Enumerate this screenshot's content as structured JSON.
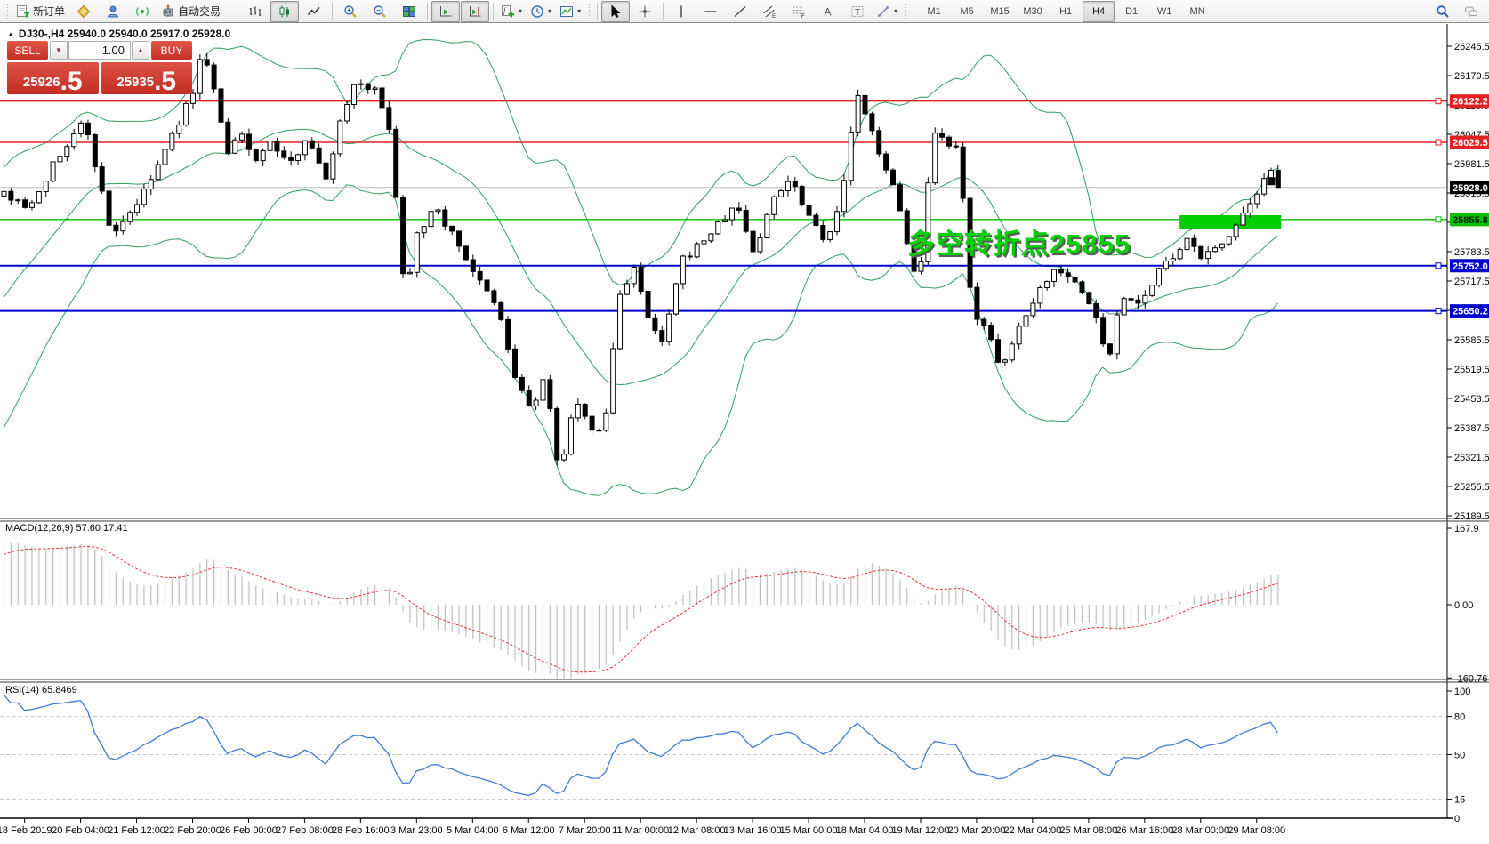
{
  "icons": {
    "caret": "▾",
    "spinner_up": "▲",
    "spinner_down": "▼",
    "collapse": "▲"
  },
  "toolbar": {
    "new_order_label": "新订单",
    "autotrading_label": "自动交易",
    "timeframes": [
      "M1",
      "M5",
      "M15",
      "M30",
      "H1",
      "H4",
      "D1",
      "W1",
      "MN"
    ],
    "active_timeframe": "H4"
  },
  "trade_panel": {
    "sell_label": "SELL",
    "buy_label": "BUY",
    "volume": "1.00",
    "sell_price_main": "25926",
    "sell_price_fraction": ".5",
    "buy_price_main": "25935",
    "buy_price_fraction": ".5"
  },
  "annotation": {
    "text": "多空转折点25855"
  },
  "chart_data": {
    "type": "candlestick",
    "symbol": "DJ30-",
    "timeframe": "H4",
    "title": "DJ30-,H4 25940.0 25940.0 25917.0 25928.0",
    "bid": "25926.5",
    "ask": "25935.5",
    "y_axis": {
      "ticks": [
        26245.5,
        26179.5,
        26113.5,
        26047.5,
        25981.5,
        25915.5,
        25849.5,
        25783.5,
        25717.5,
        25651.5,
        25585.5,
        25519.5,
        25453.5,
        25387.5,
        25321.5,
        25255.5,
        25189.5
      ]
    },
    "x_axis": {
      "labels": [
        "18 Feb 2019",
        "20 Feb 04:00",
        "21 Feb 12:00",
        "22 Feb 20:00",
        "26 Feb 00:00",
        "27 Feb 08:00",
        "28 Feb 16:00",
        "3 Mar 23:00",
        "5 Mar 04:00",
        "6 Mar 12:00",
        "7 Mar 20:00",
        "11 Mar 00:00",
        "12 Mar 08:00",
        "13 Mar 16:00",
        "15 Mar 00:00",
        "18 Mar 04:00",
        "19 Mar 12:00",
        "20 Mar 20:00",
        "22 Mar 04:00",
        "25 Mar 08:00",
        "26 Mar 16:00",
        "28 Mar 00:00",
        "29 Mar 08:00"
      ]
    },
    "price_lines": [
      {
        "price": 26122.2,
        "label": "26122.2",
        "color": "#e22222",
        "width": 1.4
      },
      {
        "price": 26029.5,
        "label": "26029.5",
        "color": "#e22222",
        "width": 1.4
      },
      {
        "price": 25928.0,
        "label": "25928.0",
        "color": "#bcbcbc",
        "width": 1,
        "label_bg": "#000000",
        "role": "current-price"
      },
      {
        "price": 25855.8,
        "label": "25855.8",
        "color": "#00c000",
        "width": 1.4,
        "label_text": "#002200"
      },
      {
        "price": 25752.0,
        "label": "25752.0",
        "color": "#0000cc",
        "width": 2
      },
      {
        "price": 25650.2,
        "label": "25650.2",
        "color": "#0000cc",
        "width": 2
      }
    ],
    "highlight_zone": {
      "bar_start": 168,
      "bar_end": 182.5,
      "price_top": 25865.5,
      "price_bottom": 25835.5,
      "color": "#00cc00"
    },
    "marker": {
      "bar": 181,
      "price": 25943
    },
    "price_path": [
      [
        -160,
        25400
      ],
      [
        -60,
        25700
      ],
      [
        0,
        25920
      ],
      [
        30,
        25880
      ],
      [
        60,
        25980
      ],
      [
        95,
        26080
      ],
      [
        125,
        25820
      ],
      [
        160,
        25910
      ],
      [
        185,
        26010
      ],
      [
        215,
        26135
      ],
      [
        228,
        26240
      ],
      [
        240,
        26150
      ],
      [
        255,
        26000
      ],
      [
        270,
        26050
      ],
      [
        285,
        25990
      ],
      [
        305,
        26030
      ],
      [
        325,
        25975
      ],
      [
        345,
        26050
      ],
      [
        365,
        25940
      ],
      [
        385,
        26100
      ],
      [
        400,
        26170
      ],
      [
        420,
        26150
      ],
      [
        438,
        26060
      ],
      [
        455,
        25680
      ],
      [
        468,
        25830
      ],
      [
        490,
        25880
      ],
      [
        515,
        25800
      ],
      [
        540,
        25710
      ],
      [
        560,
        25650
      ],
      [
        580,
        25490
      ],
      [
        598,
        25425
      ],
      [
        612,
        25505
      ],
      [
        628,
        25280
      ],
      [
        645,
        25450
      ],
      [
        660,
        25395
      ],
      [
        678,
        25370
      ],
      [
        695,
        25680
      ],
      [
        712,
        25750
      ],
      [
        728,
        25630
      ],
      [
        745,
        25575
      ],
      [
        765,
        25760
      ],
      [
        788,
        25805
      ],
      [
        808,
        25845
      ],
      [
        828,
        25890
      ],
      [
        848,
        25775
      ],
      [
        868,
        25905
      ],
      [
        888,
        25950
      ],
      [
        908,
        25870
      ],
      [
        928,
        25810
      ],
      [
        945,
        25890
      ],
      [
        962,
        26140
      ],
      [
        980,
        26050
      ],
      [
        1000,
        25950
      ],
      [
        1015,
        25850
      ],
      [
        1032,
        25690
      ],
      [
        1048,
        26045
      ],
      [
        1062,
        26030
      ],
      [
        1078,
        26005
      ],
      [
        1092,
        25650
      ],
      [
        1108,
        25620
      ],
      [
        1124,
        25510
      ],
      [
        1140,
        25590
      ],
      [
        1156,
        25660
      ],
      [
        1172,
        25710
      ],
      [
        1188,
        25750
      ],
      [
        1202,
        25730
      ],
      [
        1216,
        25690
      ],
      [
        1230,
        25650
      ],
      [
        1245,
        25530
      ],
      [
        1260,
        25690
      ],
      [
        1275,
        25670
      ],
      [
        1290,
        25690
      ],
      [
        1305,
        25750
      ],
      [
        1320,
        25770
      ],
      [
        1336,
        25810
      ],
      [
        1352,
        25770
      ],
      [
        1368,
        25790
      ],
      [
        1384,
        25830
      ],
      [
        1400,
        25870
      ],
      [
        1414,
        25910
      ],
      [
        1428,
        25975
      ],
      [
        1440,
        25928
      ]
    ],
    "indicators": {
      "bollinger": {
        "period": 20,
        "deviation": 2,
        "color": "#2f9e60"
      },
      "macd": {
        "label": "MACD(12,26,9) 57.60 17.41",
        "scale_ticks": [
          "167.9",
          "0.00",
          "-160.76"
        ],
        "hist_color": "#bfbfbf",
        "signal_color": "#dd3333"
      },
      "rsi": {
        "label": "RSI(14) 65.8469",
        "scale_ticks": [
          "100",
          "80",
          "50",
          "15",
          "0"
        ],
        "levels": [
          80,
          50,
          15
        ],
        "color": "#3f7cd0"
      }
    }
  }
}
